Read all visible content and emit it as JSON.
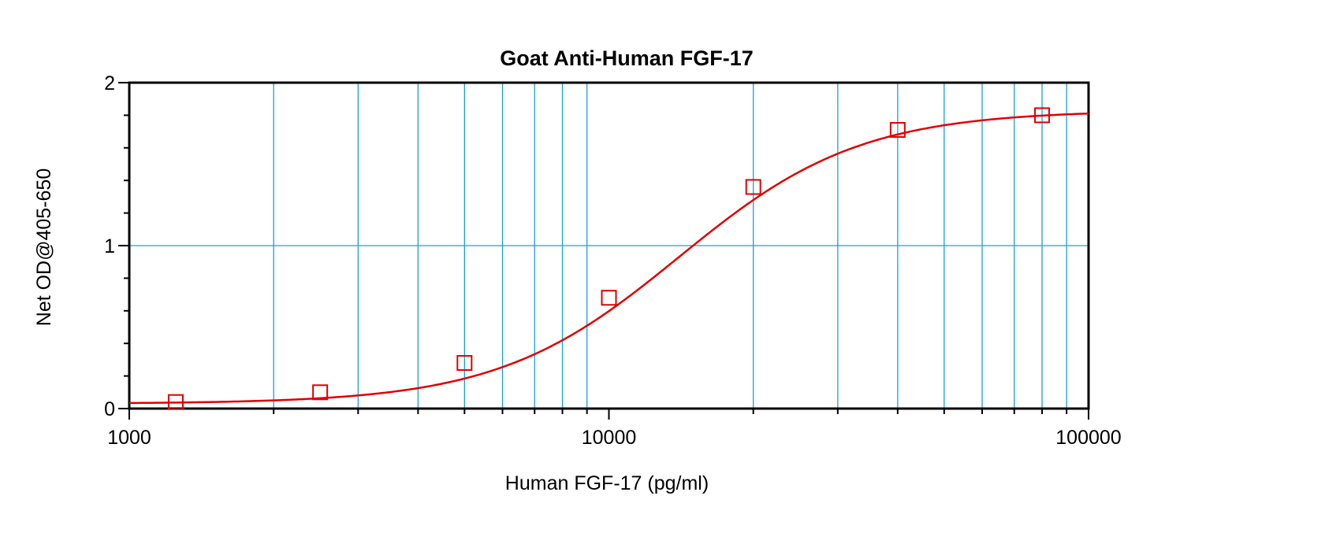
{
  "chart_data": {
    "type": "scatter",
    "title": "Goat Anti-Human FGF-17",
    "xlabel": "Human FGF-17 (pg/ml)",
    "ylabel": "Net OD@405-650",
    "xscale": "log",
    "xlim": [
      1000,
      100000
    ],
    "ylim": [
      0,
      2
    ],
    "x_tick_labels": [
      "1000",
      "10000",
      "100000"
    ],
    "x_tick_values": [
      1000,
      10000,
      100000
    ],
    "y_tick_labels": [
      "0",
      "1",
      "2"
    ],
    "y_tick_values": [
      0,
      1,
      2
    ],
    "grid": true,
    "colors": {
      "series": "#e00000",
      "grid": "#1aa0d8",
      "frame": "#000000"
    },
    "series": [
      {
        "marker": "square",
        "x": [
          1250,
          2500,
          5000,
          10000,
          20000,
          40000,
          80000
        ],
        "y": [
          0.04,
          0.1,
          0.28,
          0.68,
          1.36,
          1.71,
          1.8
        ]
      }
    ],
    "fit": {
      "model": "4PL",
      "bottom": 0.03,
      "top": 1.83,
      "ec50": 14000,
      "hill": 2.3
    }
  }
}
